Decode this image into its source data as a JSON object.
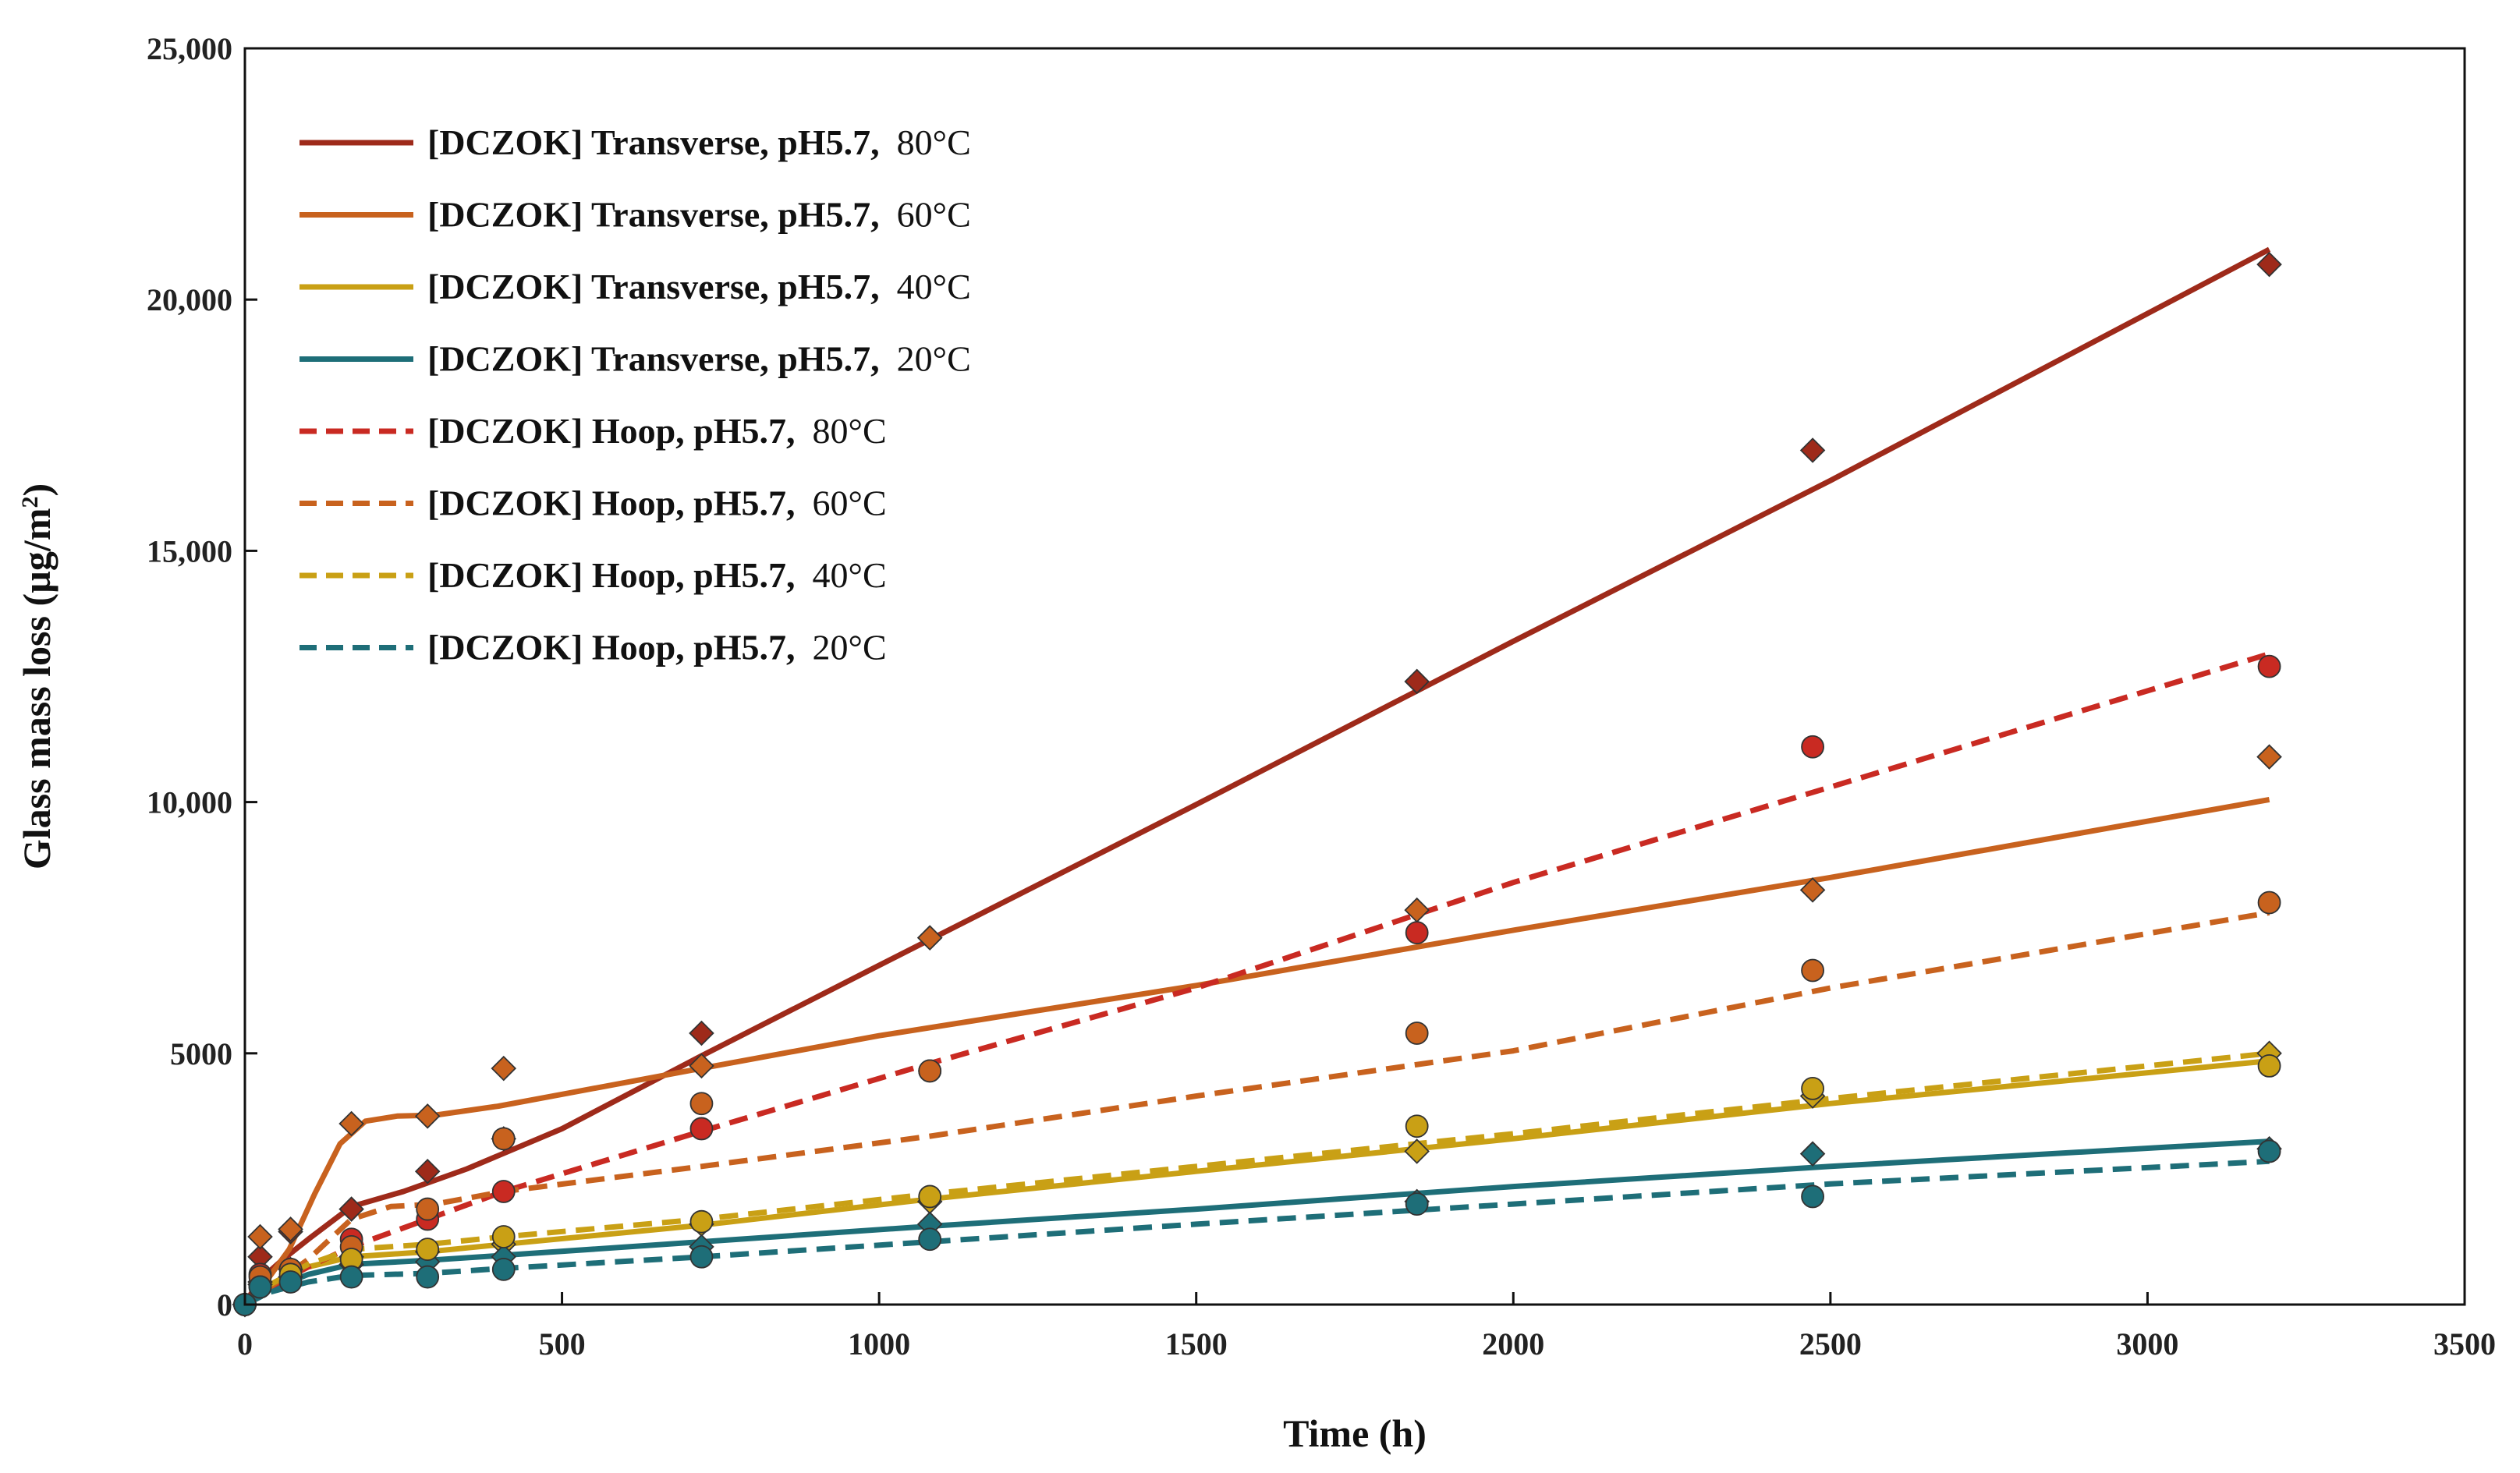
{
  "chart_data": {
    "type": "scatter",
    "title": "",
    "xlabel": "Time (h)",
    "ylabel_main": "Glass mass loss (µg/m",
    "ylabel_sup": "2",
    "ylabel_tail": ")",
    "xlim": [
      0,
      3500
    ],
    "ylim": [
      0,
      25000
    ],
    "xticks": [
      0,
      500,
      1000,
      1500,
      2000,
      2500,
      3000,
      3500
    ],
    "xtick_labels": [
      "0",
      "500",
      "1000",
      "1500",
      "2000",
      "2500",
      "3000",
      "3500"
    ],
    "yticks": [
      0,
      5000,
      10000,
      15000,
      20000,
      25000
    ],
    "ytick_labels": [
      "0",
      "5000",
      "10,000",
      "15,000",
      "20,000",
      "25,000"
    ],
    "legend_position": "top-left",
    "series": [
      {
        "name": "[DCZOK] Transverse, pH5.7, 80°C",
        "legend_main": "[DCZOK] Transverse, pH5.7,",
        "legend_temp": "80°C",
        "color": "#9E2A1A",
        "line_style": "solid",
        "marker": "diamond",
        "points": [
          [
            0,
            0
          ],
          [
            24,
            950
          ],
          [
            72,
            1450
          ],
          [
            168,
            1900
          ],
          [
            288,
            2650
          ],
          [
            408,
            3300
          ],
          [
            720,
            5400
          ],
          [
            1080,
            7300
          ],
          [
            1848,
            12400
          ],
          [
            2472,
            17000
          ],
          [
            3192,
            20700
          ]
        ],
        "fit": [
          [
            0,
            0
          ],
          [
            20,
            450
          ],
          [
            60,
            900
          ],
          [
            100,
            1300
          ],
          [
            168,
            1950
          ],
          [
            250,
            2250
          ],
          [
            350,
            2700
          ],
          [
            500,
            3500
          ],
          [
            720,
            4950
          ],
          [
            1000,
            6750
          ],
          [
            1500,
            9950
          ],
          [
            2000,
            13200
          ],
          [
            2500,
            16400
          ],
          [
            3192,
            21000
          ]
        ]
      },
      {
        "name": "[DCZOK] Transverse, pH5.7, 60°C",
        "legend_main": "[DCZOK] Transverse, pH5.7,",
        "legend_temp": "60°C",
        "color": "#C8621E",
        "line_style": "solid",
        "marker": "diamond",
        "points": [
          [
            0,
            0
          ],
          [
            24,
            1350
          ],
          [
            72,
            1500
          ],
          [
            168,
            3600
          ],
          [
            288,
            3750
          ],
          [
            408,
            4700
          ],
          [
            720,
            4750
          ],
          [
            1080,
            7300
          ],
          [
            1848,
            7850
          ],
          [
            2472,
            8250
          ],
          [
            3192,
            10900
          ]
        ],
        "fit": [
          [
            0,
            0
          ],
          [
            30,
            400
          ],
          [
            70,
            1100
          ],
          [
            110,
            2200
          ],
          [
            150,
            3200
          ],
          [
            190,
            3650
          ],
          [
            240,
            3750
          ],
          [
            300,
            3770
          ],
          [
            400,
            3950
          ],
          [
            720,
            4700
          ],
          [
            1000,
            5350
          ],
          [
            1500,
            6350
          ],
          [
            2000,
            7450
          ],
          [
            2500,
            8500
          ],
          [
            3192,
            10050
          ]
        ]
      },
      {
        "name": "[DCZOK] Transverse, pH5.7, 40°C",
        "legend_main": "[DCZOK] Transverse, pH5.7,",
        "legend_temp": "40°C",
        "color": "#C9A015",
        "line_style": "solid",
        "marker": "diamond",
        "points": [
          [
            0,
            0
          ],
          [
            24,
            450
          ],
          [
            72,
            700
          ],
          [
            168,
            950
          ],
          [
            288,
            1050
          ],
          [
            408,
            1200
          ],
          [
            720,
            1600
          ],
          [
            1080,
            2050
          ],
          [
            1848,
            3050
          ],
          [
            2472,
            4150
          ],
          [
            3192,
            5000
          ]
        ],
        "fit": [
          [
            0,
            0
          ],
          [
            40,
            350
          ],
          [
            100,
            750
          ],
          [
            168,
            950
          ],
          [
            288,
            1050
          ],
          [
            408,
            1200
          ],
          [
            720,
            1580
          ],
          [
            1080,
            2100
          ],
          [
            1500,
            2650
          ],
          [
            2000,
            3300
          ],
          [
            2500,
            4000
          ],
          [
            3192,
            4850
          ]
        ]
      },
      {
        "name": "[DCZOK] Transverse, pH5.7, 20°C",
        "legend_main": "[DCZOK] Transverse, pH5.7,",
        "legend_temp": "20°C",
        "color": "#1E6E78",
        "line_style": "solid",
        "marker": "diamond",
        "points": [
          [
            0,
            0
          ],
          [
            24,
            400
          ],
          [
            72,
            550
          ],
          [
            168,
            800
          ],
          [
            288,
            850
          ],
          [
            408,
            950
          ],
          [
            720,
            1150
          ],
          [
            1080,
            1600
          ],
          [
            1848,
            2050
          ],
          [
            2472,
            3000
          ],
          [
            3192,
            3100
          ]
        ],
        "fit": [
          [
            0,
            0
          ],
          [
            40,
            300
          ],
          [
            100,
            600
          ],
          [
            168,
            800
          ],
          [
            288,
            880
          ],
          [
            408,
            980
          ],
          [
            720,
            1250
          ],
          [
            1080,
            1560
          ],
          [
            1500,
            1900
          ],
          [
            2000,
            2350
          ],
          [
            2500,
            2750
          ],
          [
            3192,
            3250
          ]
        ]
      },
      {
        "name": "[DCZOK] Hoop, pH5.7, 80°C",
        "legend_main": "[DCZOK] Hoop, pH5.7,",
        "legend_temp": "80°C",
        "color": "#C92A22",
        "line_style": "dashed",
        "marker": "circle",
        "points": [
          [
            0,
            0
          ],
          [
            24,
            600
          ],
          [
            72,
            700
          ],
          [
            168,
            1300
          ],
          [
            288,
            1700
          ],
          [
            408,
            2250
          ],
          [
            720,
            3500
          ],
          [
            1080,
            4650
          ],
          [
            1848,
            7400
          ],
          [
            2472,
            11100
          ],
          [
            3192,
            12700
          ]
        ],
        "fit": [
          [
            0,
            0
          ],
          [
            40,
            350
          ],
          [
            100,
            750
          ],
          [
            168,
            1150
          ],
          [
            288,
            1700
          ],
          [
            408,
            2250
          ],
          [
            720,
            3450
          ],
          [
            1080,
            4800
          ],
          [
            1500,
            6300
          ],
          [
            2000,
            8400
          ],
          [
            2500,
            10300
          ],
          [
            3192,
            12950
          ]
        ]
      },
      {
        "name": "[DCZOK] Hoop, pH5.7, 60°C",
        "legend_main": "[DCZOK] Hoop, pH5.7,",
        "legend_temp": "60°C",
        "color": "#C8621E",
        "line_style": "dashed",
        "marker": "circle",
        "points": [
          [
            0,
            0
          ],
          [
            24,
            550
          ],
          [
            72,
            700
          ],
          [
            168,
            1150
          ],
          [
            288,
            1900
          ],
          [
            408,
            3300
          ],
          [
            720,
            4000
          ],
          [
            1080,
            4650
          ],
          [
            1848,
            5400
          ],
          [
            2472,
            6650
          ],
          [
            3192,
            8000
          ]
        ],
        "fit": [
          [
            0,
            0
          ],
          [
            40,
            350
          ],
          [
            100,
            900
          ],
          [
            168,
            1700
          ],
          [
            230,
            1950
          ],
          [
            300,
            2000
          ],
          [
            408,
            2250
          ],
          [
            720,
            2750
          ],
          [
            1080,
            3350
          ],
          [
            1500,
            4150
          ],
          [
            2000,
            5050
          ],
          [
            2500,
            6300
          ],
          [
            3192,
            7800
          ]
        ]
      },
      {
        "name": "[DCZOK] Hoop, pH5.7, 40°C",
        "legend_main": "[DCZOK] Hoop, pH5.7,",
        "legend_temp": "40°C",
        "color": "#C9A015",
        "line_style": "dashed",
        "marker": "circle",
        "points": [
          [
            0,
            0
          ],
          [
            24,
            350
          ],
          [
            72,
            600
          ],
          [
            168,
            900
          ],
          [
            288,
            1100
          ],
          [
            408,
            1350
          ],
          [
            720,
            1650
          ],
          [
            1080,
            2150
          ],
          [
            1848,
            3550
          ],
          [
            2472,
            4300
          ],
          [
            3192,
            4750
          ]
        ],
        "fit": [
          [
            0,
            0
          ],
          [
            40,
            400
          ],
          [
            100,
            800
          ],
          [
            168,
            1100
          ],
          [
            288,
            1200
          ],
          [
            408,
            1350
          ],
          [
            720,
            1700
          ],
          [
            1080,
            2200
          ],
          [
            1500,
            2750
          ],
          [
            2000,
            3400
          ],
          [
            2500,
            4100
          ],
          [
            3192,
            5000
          ]
        ]
      },
      {
        "name": "[DCZOK] Hoop, pH5.7, 20°C",
        "legend_main": "[DCZOK] Hoop, pH5.7,",
        "legend_temp": "20°C",
        "color": "#1E6E78",
        "line_style": "dashed",
        "marker": "circle",
        "points": [
          [
            0,
            0
          ],
          [
            24,
            350
          ],
          [
            72,
            450
          ],
          [
            168,
            550
          ],
          [
            288,
            550
          ],
          [
            408,
            700
          ],
          [
            720,
            950
          ],
          [
            1080,
            1300
          ],
          [
            1848,
            2000
          ],
          [
            2472,
            2150
          ],
          [
            3192,
            3050
          ]
        ],
        "fit": [
          [
            0,
            0
          ],
          [
            40,
            250
          ],
          [
            100,
            450
          ],
          [
            168,
            580
          ],
          [
            288,
            620
          ],
          [
            408,
            720
          ],
          [
            720,
            950
          ],
          [
            1080,
            1250
          ],
          [
            1500,
            1600
          ],
          [
            2000,
            2000
          ],
          [
            2500,
            2400
          ],
          [
            3192,
            2850
          ]
        ]
      }
    ]
  }
}
